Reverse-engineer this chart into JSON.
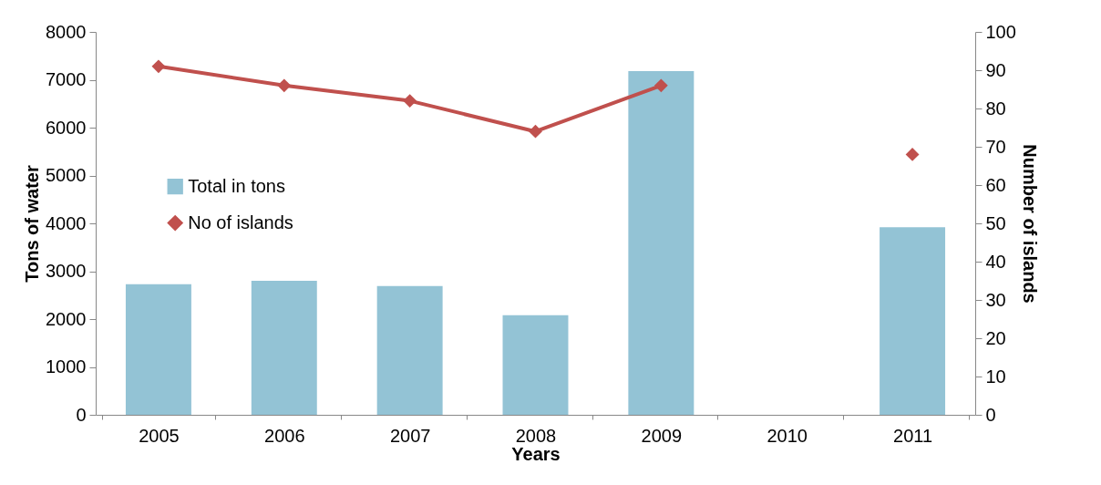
{
  "chart_data": {
    "type": "bar",
    "xlabel": "Years",
    "ylabel": "Tons of water",
    "y2label": "Number of islands",
    "categories": [
      "2005",
      "2006",
      "2007",
      "2008",
      "2009",
      "2010",
      "2011"
    ],
    "series": [
      {
        "name": "Total in tons",
        "color": "#93c3d5",
        "values": [
          2730,
          2800,
          2690,
          2080,
          7180,
          null,
          3920
        ]
      },
      {
        "name": "No of islands",
        "type": "line",
        "axis": "y2",
        "color": "#c0504d",
        "marker": "diamond",
        "values": [
          91,
          86,
          82,
          74,
          86,
          null,
          68
        ]
      }
    ],
    "ylim": [
      0,
      8000
    ],
    "yticks": [
      0,
      1000,
      2000,
      3000,
      4000,
      5000,
      6000,
      7000,
      8000
    ],
    "y2lim": [
      0,
      100
    ],
    "y2ticks": [
      0,
      10,
      20,
      30,
      40,
      50,
      60,
      70,
      80,
      90,
      100
    ],
    "grid": false,
    "legend": "left"
  }
}
